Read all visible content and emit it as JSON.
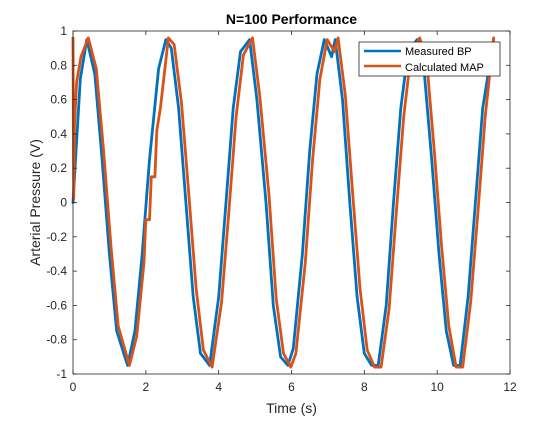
{
  "chart_data": {
    "type": "line",
    "title": "N=100 Performance",
    "xlabel": "Time (s)",
    "ylabel": "Arterial Pressure (V)",
    "xlim": [
      0,
      12
    ],
    "ylim": [
      -1,
      1
    ],
    "xticks": [
      "0",
      "2",
      "4",
      "6",
      "8",
      "10",
      "12"
    ],
    "yticks": [
      "-1",
      "-0.8",
      "-0.6",
      "-0.4",
      "-0.2",
      "0",
      "0.2",
      "0.4",
      "0.6",
      "0.8",
      "1"
    ],
    "grid": false,
    "legend_position": "top-right",
    "series": [
      {
        "name": "Measured BP",
        "color": "#0072BD",
        "x": [
          0,
          0.2,
          0.38,
          0.6,
          0.8,
          1.0,
          1.2,
          1.5,
          1.7,
          1.9,
          2.1,
          2.35,
          2.55,
          2.7,
          2.9,
          3.1,
          3.3,
          3.5,
          3.75,
          4.0,
          4.2,
          4.4,
          4.6,
          4.85,
          5.05,
          5.3,
          5.5,
          5.7,
          5.9,
          6.05,
          6.3,
          6.5,
          6.7,
          6.9,
          7.1,
          7.2,
          7.4,
          7.6,
          7.8,
          8.0,
          8.2,
          8.38,
          8.6,
          8.8,
          9.0,
          9.2,
          9.45,
          9.65,
          9.85,
          10.05,
          10.25,
          10.45,
          10.63,
          10.85,
          11.05,
          11.25,
          11.55
        ],
        "y": [
          0.0,
          0.72,
          0.95,
          0.75,
          0.25,
          -0.3,
          -0.75,
          -0.95,
          -0.75,
          -0.3,
          0.25,
          0.78,
          0.95,
          0.9,
          0.55,
          0.0,
          -0.55,
          -0.88,
          -0.95,
          -0.55,
          0.0,
          0.55,
          0.88,
          0.95,
          0.6,
          0.0,
          -0.6,
          -0.9,
          -0.95,
          -0.85,
          -0.3,
          0.3,
          0.75,
          0.95,
          0.85,
          0.95,
          0.6,
          0.0,
          -0.55,
          -0.88,
          -0.95,
          -0.95,
          -0.6,
          0.0,
          0.55,
          0.88,
          0.95,
          0.75,
          0.25,
          -0.3,
          -0.75,
          -0.95,
          -0.95,
          -0.55,
          0.0,
          0.55,
          0.95
        ]
      },
      {
        "name": "Calculated MAP",
        "color": "#D95319",
        "x": [
          0,
          0.02,
          0.04,
          0.1,
          0.22,
          0.42,
          0.64,
          0.84,
          1.04,
          1.24,
          1.55,
          1.75,
          1.95,
          2.0,
          2.1,
          2.15,
          2.18,
          2.25,
          2.3,
          2.4,
          2.62,
          2.78,
          2.98,
          3.18,
          3.38,
          3.58,
          3.82,
          4.08,
          4.28,
          4.48,
          4.68,
          4.93,
          5.13,
          5.38,
          5.58,
          5.78,
          5.98,
          6.12,
          6.38,
          6.58,
          6.78,
          6.98,
          7.18,
          7.28,
          7.48,
          7.68,
          7.88,
          8.08,
          8.28,
          8.46,
          8.68,
          8.88,
          9.08,
          9.28,
          9.52,
          9.72,
          9.78,
          9.92,
          10.12,
          10.32,
          10.52,
          10.7,
          10.92,
          11.12,
          11.32,
          11.55
        ],
        "y": [
          0.96,
          0.02,
          0.45,
          0.7,
          0.85,
          0.96,
          0.78,
          0.3,
          -0.25,
          -0.72,
          -0.95,
          -0.78,
          -0.35,
          -0.1,
          -0.1,
          0.15,
          0.15,
          0.15,
          0.42,
          0.55,
          0.96,
          0.92,
          0.58,
          0.05,
          -0.5,
          -0.86,
          -0.96,
          -0.58,
          -0.05,
          0.5,
          0.86,
          0.96,
          0.62,
          0.05,
          -0.56,
          -0.88,
          -0.96,
          -0.88,
          -0.35,
          0.25,
          0.72,
          0.95,
          0.88,
          0.96,
          0.62,
          0.05,
          -0.5,
          -0.86,
          -0.96,
          -0.96,
          -0.62,
          -0.05,
          0.5,
          0.86,
          0.96,
          0.82,
          0.65,
          0.3,
          -0.25,
          -0.72,
          -0.96,
          -0.96,
          -0.58,
          -0.05,
          0.5,
          0.96
        ]
      }
    ]
  }
}
